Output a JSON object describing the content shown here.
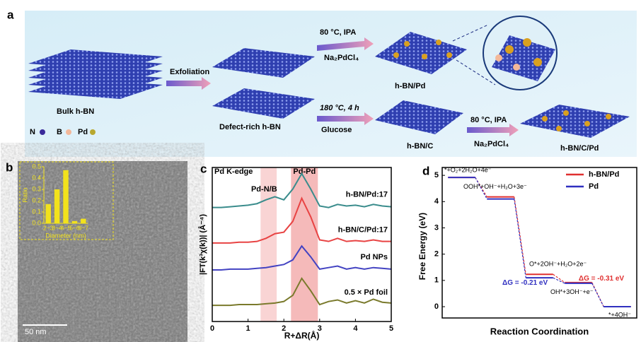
{
  "scheme": {
    "panel": "a",
    "bulk": "Bulk h-BN",
    "exfoliation": "Exfoliation",
    "defect": "Defect-rich h-BN",
    "cond_upper": "80 °C, IPA",
    "reagent_upper": "Na₂PdCl₄",
    "product_upper": "h-BN/Pd",
    "cond_lower": "180 °C, 4 h",
    "reagent_lower": "Glucose",
    "product_lower": "h-BN/C",
    "cond_final": "80 °C, IPA",
    "reagent_final": "Na₂PdCl₄",
    "product_final": "h-BN/C/Pd",
    "legend": [
      "N",
      "B",
      "Pd"
    ]
  },
  "chart_data": [
    {
      "type": "bar",
      "panel": "b",
      "scale_bar": "50 nm",
      "color": "#f2e21c",
      "categories": [
        "2~3",
        "3~4",
        "4~5",
        "5~6",
        "6~7"
      ],
      "values": [
        0.17,
        0.3,
        0.47,
        0.02,
        0.04
      ],
      "x_label": "Diameter (nm)",
      "y_label": "Ratio",
      "ylim": [
        0,
        0.5
      ],
      "yticks": [
        {
          "value": 0,
          "label": "0.0"
        },
        0.1,
        0.2,
        0.3,
        0.4,
        0.5
      ]
    },
    {
      "type": "line",
      "panel": "c",
      "title": "Pd K-edge",
      "x_label": "R+ΔR(Å)",
      "y_label": "|FT(k³χ(k))| (Å⁻⁴)",
      "xlim": [
        0,
        5
      ],
      "xticks": [
        0,
        1,
        2,
        3,
        4,
        5
      ],
      "ylim": [
        0,
        10
      ],
      "shaded_regions": [
        {
          "label": "Pd-N/B",
          "range": [
            1.35,
            1.8
          ],
          "color": "#f7c6c6"
        },
        {
          "label": "Pd-Pd",
          "range": [
            2.2,
            2.95
          ],
          "color": "#f2a3a3"
        }
      ],
      "x": [
        0,
        0.25,
        0.5,
        0.75,
        1,
        1.25,
        1.5,
        1.75,
        2,
        2.25,
        2.5,
        2.75,
        3,
        3.25,
        3.5,
        3.75,
        4,
        4.25,
        4.5,
        4.75,
        5
      ],
      "series": [
        {
          "name": "h-BN/Pd:17",
          "color": "#3a8c8c",
          "values": [
            7.4,
            7.4,
            7.45,
            7.5,
            7.55,
            7.65,
            7.9,
            8.1,
            7.9,
            8.6,
            9.6,
            8.6,
            7.5,
            7.4,
            7.6,
            7.5,
            7.55,
            7.45,
            7.6,
            7.5,
            7.45
          ]
        },
        {
          "name": "h-BN/C/Pd:17",
          "color": "#e84343",
          "values": [
            5.1,
            5.1,
            5.1,
            5.15,
            5.15,
            5.2,
            5.4,
            5.7,
            5.8,
            6.5,
            8.0,
            6.8,
            5.3,
            5.2,
            5.4,
            5.2,
            5.25,
            5.2,
            5.3,
            5.2,
            5.2
          ]
        },
        {
          "name": "Pd NPs",
          "color": "#4343c2",
          "values": [
            3.35,
            3.35,
            3.4,
            3.4,
            3.4,
            3.45,
            3.5,
            3.6,
            3.7,
            4.0,
            4.9,
            4.2,
            3.4,
            3.5,
            3.6,
            3.4,
            3.5,
            3.4,
            3.5,
            3.45,
            3.4
          ]
        },
        {
          "name": "0.5 × Pd foil",
          "color": "#7a7a2c",
          "values": [
            1.05,
            1.05,
            1.05,
            1.1,
            1.1,
            1.1,
            1.15,
            1.2,
            1.3,
            1.7,
            2.8,
            2.0,
            1.1,
            1.3,
            1.4,
            1.2,
            1.35,
            1.2,
            1.45,
            1.25,
            1.2
          ]
        }
      ]
    },
    {
      "type": "step",
      "panel": "d",
      "x_label": "Reaction Coordination",
      "y_label": "Free Energy (eV)",
      "ylim": [
        -0.43,
        5.3
      ],
      "yticks": [
        0,
        1,
        2,
        3,
        4,
        5
      ],
      "legend": "upper right",
      "categories": [
        "*+O₂+2H₂O+4e⁻",
        "OOH*+OH⁻+H₂O+3e⁻",
        "O*+2OH⁻+H₂O+2e⁻",
        "OH*+3OH⁻+e⁻",
        "*+4OH⁻"
      ],
      "series": [
        {
          "name": "h-BN/Pd",
          "color": "#e03030",
          "values": [
            4.92,
            4.18,
            1.23,
            0.92,
            0
          ]
        },
        {
          "name": "Pd",
          "color": "#3030c0",
          "values": [
            4.92,
            4.1,
            1.1,
            0.89,
            0
          ]
        }
      ],
      "annotations": [
        {
          "text": "ΔG = -0.31 eV",
          "color": "#e03030"
        },
        {
          "text": "ΔG = -0.21 eV",
          "color": "#3030c0"
        }
      ]
    }
  ]
}
